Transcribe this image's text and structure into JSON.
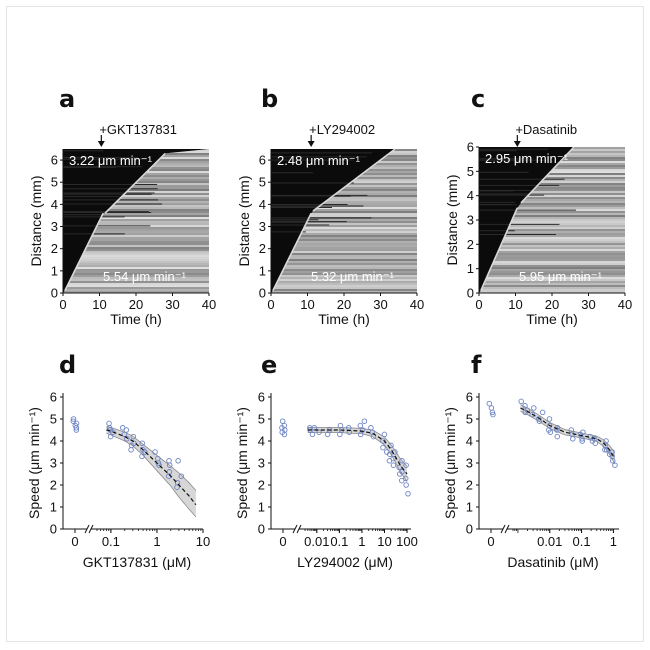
{
  "figure": {
    "panels": [
      "a",
      "b",
      "c",
      "d",
      "e",
      "f"
    ]
  },
  "colors": {
    "kymo_bg": "#0b0b0b",
    "fit_line": "#d9d9d9",
    "point_stroke": "#6f86c6",
    "ci_fill": "#c9c9c9",
    "fit_curve": "#111111"
  },
  "chart_data": [
    {
      "panel": "a",
      "type": "heatmap",
      "treatment": "+GKT137831",
      "treatment_time_h": 10.5,
      "xlabel": "Time (h)",
      "ylabel": "Distance (mm)",
      "xlim": [
        0,
        40
      ],
      "ylim": [
        0,
        6.5
      ],
      "xticks": [
        0,
        10,
        20,
        30,
        40
      ],
      "yticks": [
        0,
        1,
        2,
        3,
        4,
        5,
        6
      ],
      "speed_before": "5.54 μm min⁻¹",
      "speed_after": "3.22 μm min⁻¹",
      "fit_before": [
        [
          0.5,
          0.1
        ],
        [
          11.0,
          3.6
        ]
      ],
      "fit_after": [
        [
          11.5,
          3.6
        ],
        [
          28.0,
          6.3
        ]
      ]
    },
    {
      "panel": "b",
      "type": "heatmap",
      "treatment": "+LY294002",
      "treatment_time_h": 11.0,
      "xlabel": "Time (h)",
      "ylabel": "Distance (mm)",
      "xlim": [
        0,
        40
      ],
      "ylim": [
        0,
        6.5
      ],
      "xticks": [
        0,
        10,
        20,
        30,
        40
      ],
      "yticks": [
        0,
        1,
        2,
        3,
        4,
        5,
        6
      ],
      "speed_before": "5.32 μm min⁻¹",
      "speed_after": "2.48 μm min⁻¹",
      "fit_before": [
        [
          0.5,
          0.1
        ],
        [
          11.0,
          3.6
        ]
      ],
      "fit_after": [
        [
          11.5,
          3.7
        ],
        [
          34.0,
          6.5
        ]
      ]
    },
    {
      "panel": "c",
      "type": "heatmap",
      "treatment": "+Dasatinib",
      "treatment_time_h": 10.5,
      "xlabel": "Time (h)",
      "ylabel": "Distance (mm)",
      "xlim": [
        0,
        40
      ],
      "ylim": [
        0,
        6
      ],
      "xticks": [
        0,
        10,
        20,
        30,
        40
      ],
      "yticks": [
        0,
        1,
        2,
        3,
        4,
        5,
        6
      ],
      "speed_before": "5.95 μm min⁻¹",
      "speed_after": "2.95 μm min⁻¹",
      "fit_before": [
        [
          0.5,
          0.1
        ],
        [
          10.5,
          3.5
        ]
      ],
      "fit_after": [
        [
          11.5,
          3.7
        ],
        [
          26.0,
          6.0
        ]
      ]
    },
    {
      "panel": "d",
      "type": "scatter",
      "xlabel": "GKT137831 (μM)",
      "ylabel": "Speed (μm min⁻¹)",
      "ylim": [
        0,
        6
      ],
      "yticks": [
        0,
        1,
        2,
        3,
        4,
        5,
        6
      ],
      "xlog_range": [
        0.05,
        10
      ],
      "xticks": [
        "0",
        "0.1",
        "1",
        "10"
      ],
      "xtick_values": [
        0,
        0.1,
        1,
        10
      ],
      "control_points": [
        4.6,
        4.7,
        4.9,
        5.0,
        4.8,
        4.5
      ],
      "points": [
        [
          0.1,
          4.6
        ],
        [
          0.1,
          4.8
        ],
        [
          0.1,
          4.4
        ],
        [
          0.1,
          4.2
        ],
        [
          0.1,
          4.5
        ],
        [
          0.2,
          4.3
        ],
        [
          0.2,
          4.5
        ],
        [
          0.2,
          4.1
        ],
        [
          0.2,
          4.6
        ],
        [
          0.3,
          3.9
        ],
        [
          0.3,
          3.6
        ],
        [
          0.3,
          3.8
        ],
        [
          0.3,
          4.2
        ],
        [
          0.5,
          3.6
        ],
        [
          0.5,
          3.3
        ],
        [
          0.5,
          3.5
        ],
        [
          0.5,
          3.9
        ],
        [
          1,
          3.2
        ],
        [
          1,
          2.9
        ],
        [
          1,
          3.5
        ],
        [
          1,
          3.0
        ],
        [
          2,
          2.6
        ],
        [
          2,
          2.9
        ],
        [
          2,
          2.4
        ],
        [
          2,
          3.1
        ],
        [
          3,
          2.1
        ],
        [
          3,
          2.4
        ],
        [
          3,
          1.9
        ],
        [
          3,
          3.1
        ]
      ],
      "fit": [
        [
          0.08,
          4.5
        ],
        [
          0.1,
          4.45
        ],
        [
          0.2,
          4.2
        ],
        [
          0.3,
          4.0
        ],
        [
          0.5,
          3.6
        ],
        [
          1,
          3.0
        ],
        [
          2,
          2.4
        ],
        [
          3,
          2.0
        ],
        [
          5,
          1.5
        ],
        [
          7,
          1.1
        ]
      ],
      "ci_upper": [
        [
          0.08,
          4.65
        ],
        [
          0.1,
          4.62
        ],
        [
          0.2,
          4.4
        ],
        [
          0.3,
          4.22
        ],
        [
          0.5,
          3.85
        ],
        [
          1,
          3.35
        ],
        [
          2,
          2.85
        ],
        [
          3,
          2.55
        ],
        [
          5,
          2.1
        ],
        [
          7,
          1.75
        ]
      ],
      "ci_lower": [
        [
          0.08,
          4.35
        ],
        [
          0.1,
          4.28
        ],
        [
          0.2,
          4.0
        ],
        [
          0.3,
          3.78
        ],
        [
          0.5,
          3.35
        ],
        [
          1,
          2.65
        ],
        [
          2,
          1.95
        ],
        [
          3,
          1.45
        ],
        [
          5,
          0.9
        ],
        [
          7,
          0.55
        ]
      ]
    },
    {
      "panel": "e",
      "type": "scatter",
      "xlabel": "LY294002 (μM)",
      "ylabel": "Speed (μm min⁻¹)",
      "ylim": [
        0,
        6
      ],
      "yticks": [
        0,
        1,
        2,
        3,
        4,
        5,
        6
      ],
      "xlog_range": [
        0.003,
        150
      ],
      "xticks": [
        "0",
        "0.01",
        "0.1",
        "1",
        "10",
        "100"
      ],
      "xtick_values": [
        0,
        0.01,
        0.1,
        1,
        10,
        100
      ],
      "control_points": [
        4.3,
        4.5,
        4.7,
        4.9,
        4.4,
        4.6
      ],
      "points": [
        [
          0.005,
          4.5
        ],
        [
          0.005,
          4.3
        ],
        [
          0.005,
          4.6
        ],
        [
          0.01,
          4.4
        ],
        [
          0.01,
          4.6
        ],
        [
          0.03,
          4.5
        ],
        [
          0.03,
          4.3
        ],
        [
          0.1,
          4.5
        ],
        [
          0.1,
          4.7
        ],
        [
          0.1,
          4.3
        ],
        [
          0.3,
          4.6
        ],
        [
          0.3,
          4.4
        ],
        [
          1,
          4.5
        ],
        [
          1,
          4.3
        ],
        [
          1,
          4.7
        ],
        [
          1,
          4.9
        ],
        [
          3,
          4.4
        ],
        [
          3,
          4.2
        ],
        [
          3,
          4.6
        ],
        [
          10,
          4.0
        ],
        [
          10,
          3.7
        ],
        [
          10,
          4.3
        ],
        [
          10,
          3.5
        ],
        [
          20,
          3.4
        ],
        [
          20,
          3.8
        ],
        [
          20,
          3.1
        ],
        [
          30,
          3.2
        ],
        [
          30,
          3.5
        ],
        [
          30,
          2.9
        ],
        [
          50,
          2.8
        ],
        [
          50,
          3.1
        ],
        [
          50,
          2.5
        ],
        [
          70,
          2.6
        ],
        [
          70,
          2.2
        ],
        [
          100,
          2.9
        ],
        [
          100,
          2.3
        ],
        [
          100,
          1.6
        ],
        [
          100,
          2.0
        ]
      ],
      "fit": [
        [
          0.004,
          4.5
        ],
        [
          0.01,
          4.5
        ],
        [
          0.1,
          4.5
        ],
        [
          1,
          4.45
        ],
        [
          3,
          4.35
        ],
        [
          10,
          4.0
        ],
        [
          20,
          3.6
        ],
        [
          30,
          3.3
        ],
        [
          50,
          2.9
        ],
        [
          100,
          2.5
        ]
      ],
      "ci_upper": [
        [
          0.004,
          4.62
        ],
        [
          0.01,
          4.62
        ],
        [
          0.1,
          4.62
        ],
        [
          1,
          4.57
        ],
        [
          3,
          4.5
        ],
        [
          10,
          4.18
        ],
        [
          20,
          3.82
        ],
        [
          30,
          3.55
        ],
        [
          50,
          3.2
        ],
        [
          100,
          2.85
        ]
      ],
      "ci_lower": [
        [
          0.004,
          4.38
        ],
        [
          0.01,
          4.38
        ],
        [
          0.1,
          4.38
        ],
        [
          1,
          4.33
        ],
        [
          3,
          4.2
        ],
        [
          10,
          3.82
        ],
        [
          20,
          3.38
        ],
        [
          30,
          3.05
        ],
        [
          50,
          2.6
        ],
        [
          100,
          2.15
        ]
      ]
    },
    {
      "panel": "f",
      "type": "scatter",
      "xlabel": "Dasatinib (μM)",
      "ylabel": "Speed (μm min⁻¹)",
      "ylim": [
        0,
        6
      ],
      "yticks": [
        0,
        1,
        2,
        3,
        4,
        5,
        6
      ],
      "xlog_range": [
        0.0007,
        1.5
      ],
      "xticks": [
        "0",
        "0.01",
        "0.1",
        "1"
      ],
      "xtick_values": [
        0,
        0.01,
        0.1,
        1
      ],
      "control_points": [
        5.3,
        5.5,
        5.7,
        5.2
      ],
      "points": [
        [
          0.0015,
          5.6
        ],
        [
          0.0015,
          5.3
        ],
        [
          0.0015,
          5.8
        ],
        [
          0.002,
          5.4
        ],
        [
          0.003,
          5.5
        ],
        [
          0.003,
          5.2
        ],
        [
          0.005,
          5.0
        ],
        [
          0.005,
          5.3
        ],
        [
          0.005,
          4.9
        ],
        [
          0.01,
          4.7
        ],
        [
          0.01,
          4.5
        ],
        [
          0.01,
          5.0
        ],
        [
          0.01,
          4.4
        ],
        [
          0.02,
          4.5
        ],
        [
          0.02,
          4.2
        ],
        [
          0.02,
          4.6
        ],
        [
          0.05,
          4.3
        ],
        [
          0.05,
          4.1
        ],
        [
          0.05,
          4.5
        ],
        [
          0.1,
          4.3
        ],
        [
          0.1,
          4.1
        ],
        [
          0.1,
          4.4
        ],
        [
          0.1,
          4.0
        ],
        [
          0.2,
          4.2
        ],
        [
          0.2,
          4.0
        ],
        [
          0.3,
          4.1
        ],
        [
          0.3,
          3.9
        ],
        [
          0.5,
          3.8
        ],
        [
          0.5,
          4.0
        ],
        [
          0.5,
          3.6
        ],
        [
          0.7,
          3.6
        ],
        [
          0.7,
          3.4
        ],
        [
          1,
          3.3
        ],
        [
          1,
          3.1
        ],
        [
          1,
          2.9
        ],
        [
          1,
          3.5
        ]
      ],
      "fit": [
        [
          0.0012,
          5.5
        ],
        [
          0.002,
          5.35
        ],
        [
          0.005,
          5.0
        ],
        [
          0.01,
          4.7
        ],
        [
          0.03,
          4.4
        ],
        [
          0.1,
          4.25
        ],
        [
          0.3,
          4.1
        ],
        [
          0.5,
          3.9
        ],
        [
          0.8,
          3.55
        ],
        [
          1.1,
          3.2
        ]
      ],
      "ci_upper": [
        [
          0.0012,
          5.65
        ],
        [
          0.002,
          5.5
        ],
        [
          0.005,
          5.14
        ],
        [
          0.01,
          4.84
        ],
        [
          0.03,
          4.52
        ],
        [
          0.1,
          4.36
        ],
        [
          0.3,
          4.22
        ],
        [
          0.5,
          4.05
        ],
        [
          0.8,
          3.75
        ],
        [
          1.1,
          3.45
        ]
      ],
      "ci_lower": [
        [
          0.0012,
          5.35
        ],
        [
          0.002,
          5.2
        ],
        [
          0.005,
          4.86
        ],
        [
          0.01,
          4.56
        ],
        [
          0.03,
          4.28
        ],
        [
          0.1,
          4.14
        ],
        [
          0.3,
          3.98
        ],
        [
          0.5,
          3.75
        ],
        [
          0.8,
          3.35
        ],
        [
          1.1,
          2.95
        ]
      ]
    }
  ]
}
